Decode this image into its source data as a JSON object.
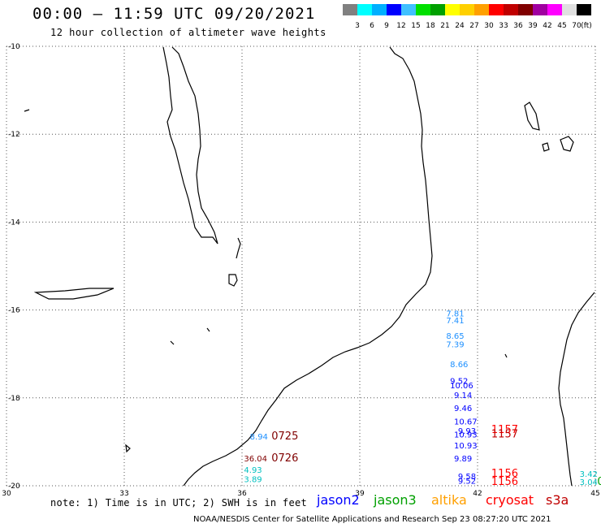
{
  "header": {
    "title": "00:00 – 11:59 UTC 09/20/2021",
    "subtitle": "12 hour collection of altimeter wave heights"
  },
  "colorbar": {
    "colors": [
      "#808080",
      "#00ffff",
      "#00b0ff",
      "#0000ff",
      "#40c0ff",
      "#00e000",
      "#00a000",
      "#ffff00",
      "#ffd000",
      "#ffa000",
      "#ff0000",
      "#c00000",
      "#800000",
      "#a000a0",
      "#ff00ff",
      "#e0e0e0",
      "#000000"
    ],
    "labels": [
      "3",
      "6",
      "9",
      "12",
      "15",
      "18",
      "21",
      "24",
      "27",
      "30",
      "33",
      "36",
      "39",
      "42",
      "45",
      "70",
      "(ft)"
    ]
  },
  "axes": {
    "x_ticks": [
      "30",
      "33",
      "36",
      "39",
      "42",
      "45"
    ],
    "y_ticks": [
      "-10",
      "-12",
      "-14",
      "-16",
      "-18",
      "-20"
    ]
  },
  "observations": [
    {
      "lon": 41.2,
      "lat": -16.15,
      "text": "7.81",
      "color": "#1e90ff"
    },
    {
      "lon": 41.2,
      "lat": -16.3,
      "text": "7.41",
      "color": "#1e90ff"
    },
    {
      "lon": 41.2,
      "lat": -16.65,
      "text": "8.65",
      "color": "#1e90ff"
    },
    {
      "lon": 41.2,
      "lat": -16.85,
      "text": "7.39",
      "color": "#1e90ff"
    },
    {
      "lon": 41.3,
      "lat": -17.3,
      "text": "8.66",
      "color": "#1e90ff"
    },
    {
      "lon": 41.3,
      "lat": -17.68,
      "text": "9.52",
      "color": "#0000ff"
    },
    {
      "lon": 41.3,
      "lat": -17.78,
      "text": "10.06",
      "color": "#0000ff"
    },
    {
      "lon": 41.4,
      "lat": -18.0,
      "text": "9.14",
      "color": "#0000ff"
    },
    {
      "lon": 41.4,
      "lat": -18.3,
      "text": "9.46",
      "color": "#0000ff"
    },
    {
      "lon": 41.4,
      "lat": -18.6,
      "text": "10.67",
      "color": "#0000ff"
    },
    {
      "lon": 41.4,
      "lat": -18.9,
      "text": "10.93",
      "color": "#0000ff"
    },
    {
      "lon": 41.5,
      "lat": -18.82,
      "text": "9.93",
      "color": "#0000ff"
    },
    {
      "lon": 41.4,
      "lat": -19.15,
      "text": "10.93",
      "color": "#0000ff"
    },
    {
      "lon": 41.4,
      "lat": -19.45,
      "text": "9.89",
      "color": "#0000ff"
    },
    {
      "lon": 41.5,
      "lat": -19.85,
      "text": "9.58",
      "color": "#0000ff"
    },
    {
      "lon": 41.5,
      "lat": -19.95,
      "text": "9.52",
      "color": "#0000ff"
    },
    {
      "lon": 36.2,
      "lat": -18.95,
      "text": "8.94",
      "color": "#1e90ff"
    },
    {
      "lon": 36.05,
      "lat": -19.45,
      "text": "36.04",
      "color": "#800000"
    },
    {
      "lon": 36.05,
      "lat": -19.7,
      "text": "4.93",
      "color": "#00c0c0"
    },
    {
      "lon": 36.05,
      "lat": -19.92,
      "text": "3.89",
      "color": "#00c0c0"
    },
    {
      "lon": 44.6,
      "lat": -19.8,
      "text": "3.42",
      "color": "#00c0c0"
    },
    {
      "lon": 44.6,
      "lat": -19.98,
      "text": "3.04",
      "color": "#00c0c0"
    }
  ],
  "passes": [
    {
      "lon": 36.75,
      "lat": -18.95,
      "text": "0725",
      "color": "#800000"
    },
    {
      "lon": 36.75,
      "lat": -19.45,
      "text": "0726",
      "color": "#800000"
    },
    {
      "lon": 42.35,
      "lat": -18.8,
      "text": "1157",
      "color": "#ff0000"
    },
    {
      "lon": 42.35,
      "lat": -18.9,
      "text": "1157",
      "color": "#c00000"
    },
    {
      "lon": 42.35,
      "lat": -19.8,
      "text": "1156",
      "color": "#ff0000"
    },
    {
      "lon": 42.35,
      "lat": -19.98,
      "text": "1156",
      "color": "#ff0000"
    },
    {
      "lon": 45.05,
      "lat": -19.98,
      "text": "0",
      "color": "#00a000"
    }
  ],
  "footer": {
    "note": "note: 1) Time is in UTC; 2) SWH is in feet",
    "legend": [
      {
        "label": "jason2",
        "color": "#0000ff"
      },
      {
        "label": "jason3",
        "color": "#00a000"
      },
      {
        "label": "altika",
        "color": "#ffa000"
      },
      {
        "label": "cryosat",
        "color": "#ff0000"
      },
      {
        "label": "s3a",
        "color": "#c00000"
      }
    ],
    "credit": "NOAA/NESDIS Center for Satellite Applications and Research   Sep 23 08:27:20 UTC 2021"
  }
}
